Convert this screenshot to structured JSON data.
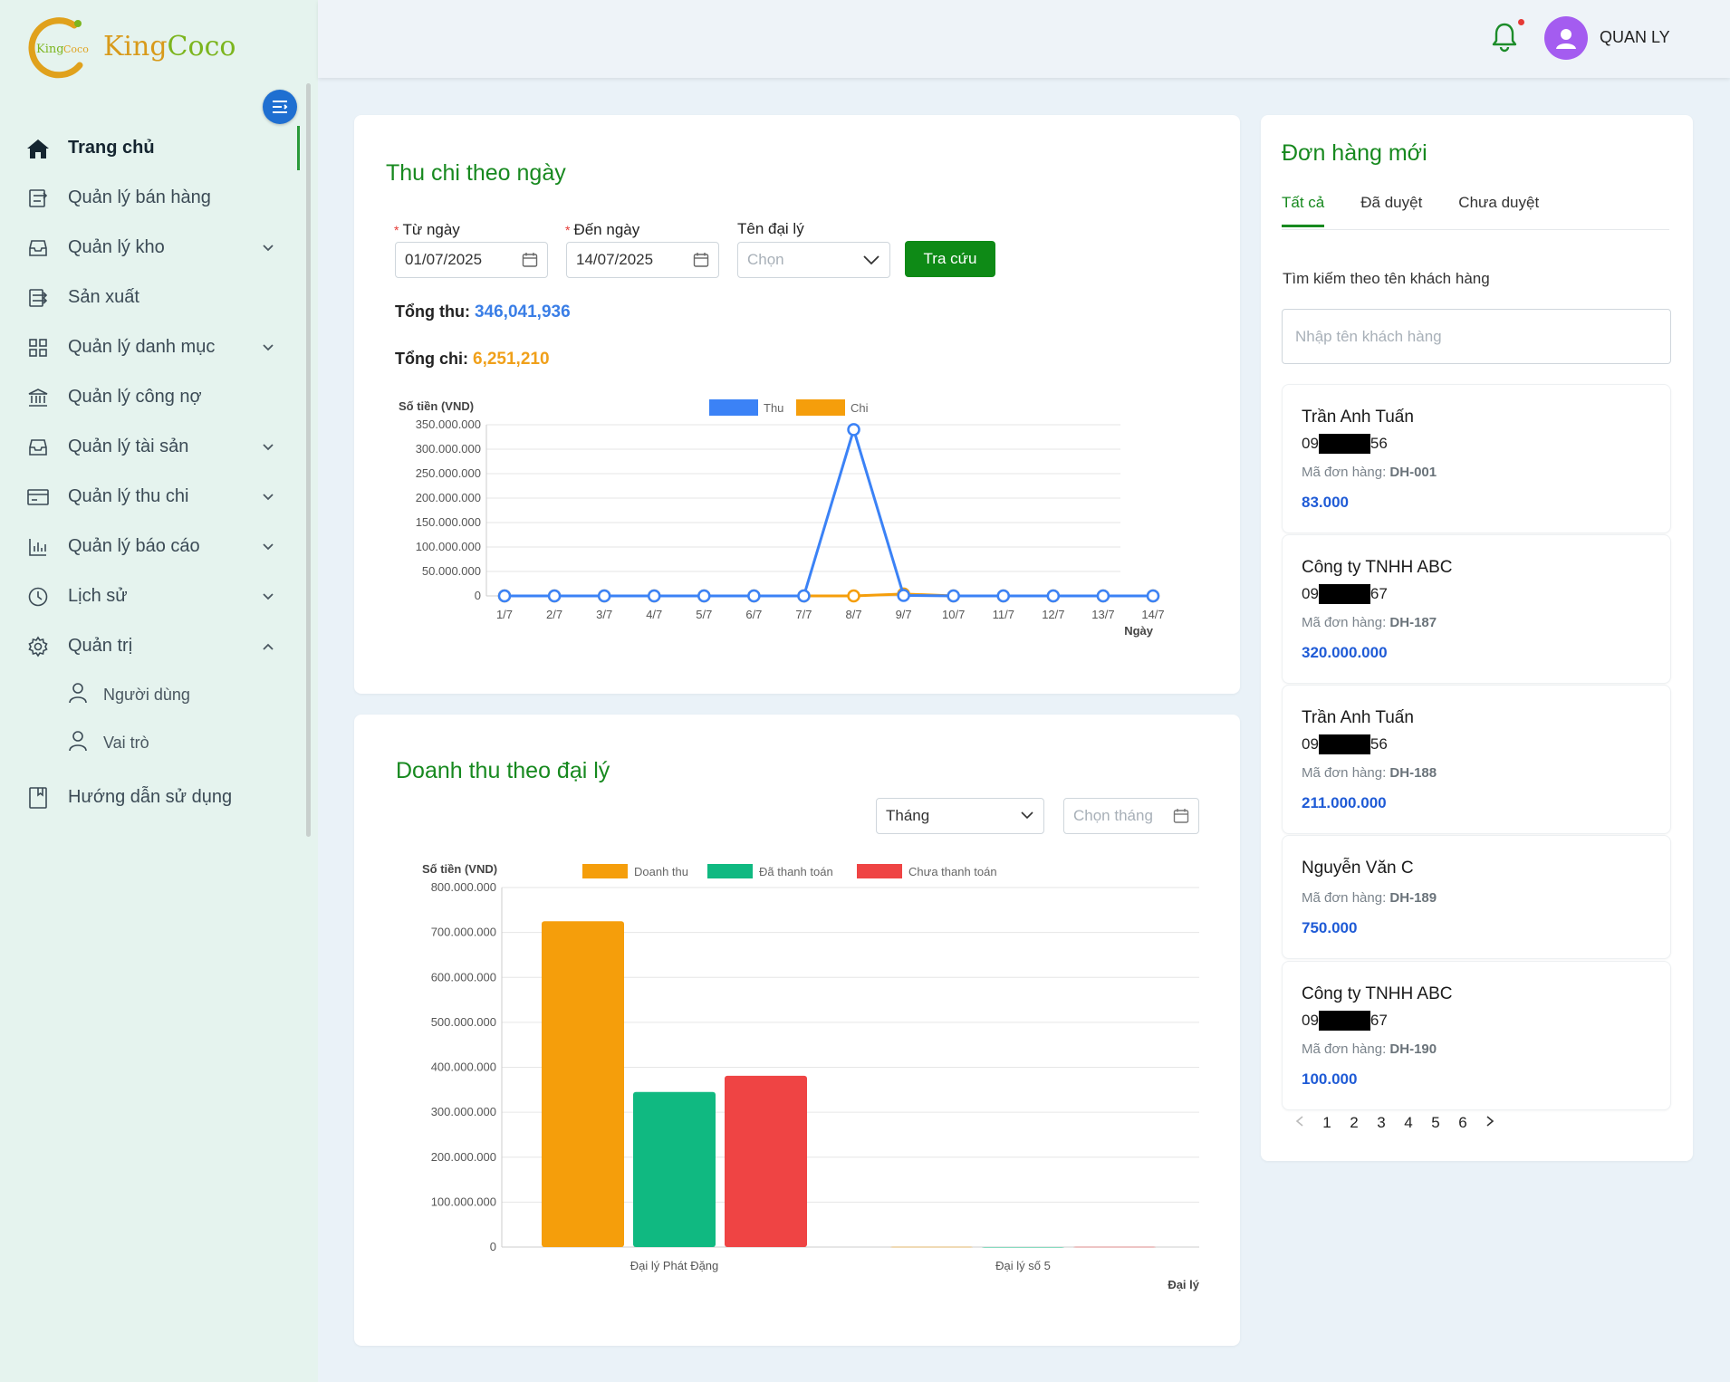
{
  "brand": {
    "name_part1": "King",
    "name_part2": "Coco",
    "logo_lettering": "KingCoco"
  },
  "sidebar": {
    "items": [
      {
        "label": "Trang chủ",
        "icon": "home-icon",
        "active": true,
        "chevron": ""
      },
      {
        "label": "Quản lý bán hàng",
        "icon": "sales-icon",
        "chevron": ""
      },
      {
        "label": "Quản lý kho",
        "icon": "warehouse-icon",
        "chevron": "down"
      },
      {
        "label": "Sản xuất",
        "icon": "production-icon",
        "chevron": ""
      },
      {
        "label": "Quản lý danh mục",
        "icon": "grid-icon",
        "chevron": "down"
      },
      {
        "label": "Quản lý công nợ",
        "icon": "bank-icon",
        "chevron": ""
      },
      {
        "label": "Quản lý tài sản",
        "icon": "inbox-icon",
        "chevron": "down"
      },
      {
        "label": "Quản lý thu chi",
        "icon": "card-icon",
        "chevron": "down"
      },
      {
        "label": "Quản lý báo cáo",
        "icon": "bar-chart-icon",
        "chevron": "down"
      },
      {
        "label": "Lịch sử",
        "icon": "clock-icon",
        "chevron": "down"
      },
      {
        "label": "Quản trị",
        "icon": "gear-icon",
        "chevron": "up"
      }
    ],
    "sub_items": [
      {
        "label": "Người dùng",
        "icon": "user-icon"
      },
      {
        "label": "Vai trò",
        "icon": "user-icon"
      }
    ],
    "footer_item": {
      "label": "Hướng dẫn sử dụng",
      "icon": "book-icon"
    }
  },
  "header": {
    "user_name": "QUAN LY",
    "has_notification": true
  },
  "daily": {
    "title": "Thu chi theo ngày",
    "from_label": "Từ ngày",
    "from_value": "01/07/2025",
    "to_label": "Đến ngày",
    "to_value": "14/07/2025",
    "agent_label": "Tên đại lý",
    "agent_placeholder": "Chọn",
    "search_button": "Tra cứu",
    "total_income_label": "Tổng thu:",
    "total_income_value": "346,041,936",
    "total_expense_label": "Tổng chi:",
    "total_expense_value": "6,251,210"
  },
  "agent": {
    "title": "Doanh thu theo đại lý",
    "period_value": "Tháng",
    "month_placeholder": "Chọn tháng"
  },
  "chart_data": [
    {
      "type": "line",
      "ylabel": "Số tiền (VND)",
      "xlabel": "Ngày",
      "ylim": [
        0,
        350000000
      ],
      "yticks": [
        "0",
        "50.000.000",
        "100.000.000",
        "150.000.000",
        "200.000.000",
        "250.000.000",
        "300.000.000",
        "350.000.000"
      ],
      "x": [
        "1/7",
        "2/7",
        "3/7",
        "4/7",
        "5/7",
        "6/7",
        "7/7",
        "8/7",
        "9/7",
        "10/7",
        "11/7",
        "12/7",
        "13/7",
        "14/7"
      ],
      "series": [
        {
          "name": "Thu",
          "color": "#3b82f6",
          "values": [
            0,
            0,
            0,
            0,
            0,
            0,
            0,
            340000000,
            1000000,
            0,
            0,
            0,
            0,
            0
          ]
        },
        {
          "name": "Chi",
          "color": "#f59e0b",
          "values": [
            0,
            0,
            0,
            0,
            0,
            0,
            0,
            0,
            4000000,
            0,
            0,
            0,
            0,
            0
          ]
        }
      ],
      "grid": true,
      "legend": "top-center"
    },
    {
      "type": "bar",
      "ylabel": "Số tiền (VND)",
      "xlabel": "Đại lý",
      "ylim": [
        0,
        800000000
      ],
      "yticks": [
        "0",
        "100.000.000",
        "200.000.000",
        "300.000.000",
        "400.000.000",
        "500.000.000",
        "600.000.000",
        "700.000.000",
        "800.000.000"
      ],
      "categories": [
        "Đại lý Phát Đặng",
        "Đại lý số 5"
      ],
      "series": [
        {
          "name": "Doanh thu",
          "color": "#f59e0b",
          "values": [
            725000000,
            500000
          ]
        },
        {
          "name": "Đã thanh toán",
          "color": "#10b981",
          "values": [
            345000000,
            0
          ]
        },
        {
          "name": "Chưa thanh toán",
          "color": "#ef4444",
          "values": [
            381000000,
            500000
          ]
        }
      ],
      "grid": true,
      "legend": "top-center"
    }
  ],
  "orders": {
    "title": "Đơn hàng mới",
    "tabs": [
      "Tất cả",
      "Đã duyệt",
      "Chưa duyệt"
    ],
    "search_label": "Tìm kiếm theo tên khách hàng",
    "search_placeholder": "Nhập tên khách hàng",
    "code_label": "Mã đơn hàng:",
    "items": [
      {
        "name": "Trần Anh Tuấn",
        "phone_prefix": "09",
        "phone_suffix": "56",
        "code": "DH-001",
        "amount": "83.000"
      },
      {
        "name": "Công ty TNHH ABC",
        "phone_prefix": "09",
        "phone_suffix": "67",
        "code": "DH-187",
        "amount": "320.000.000"
      },
      {
        "name": "Trần Anh Tuấn",
        "phone_prefix": "09",
        "phone_suffix": "56",
        "code": "DH-188",
        "amount": "211.000.000"
      },
      {
        "name": "Nguyễn Văn C",
        "code": "DH-189",
        "amount": "750.000"
      },
      {
        "name": "Công ty TNHH ABC",
        "phone_prefix": "09",
        "phone_suffix": "67",
        "code": "DH-190",
        "amount": "100.000"
      }
    ],
    "pages": [
      "1",
      "2",
      "3",
      "4",
      "5",
      "6"
    ]
  }
}
